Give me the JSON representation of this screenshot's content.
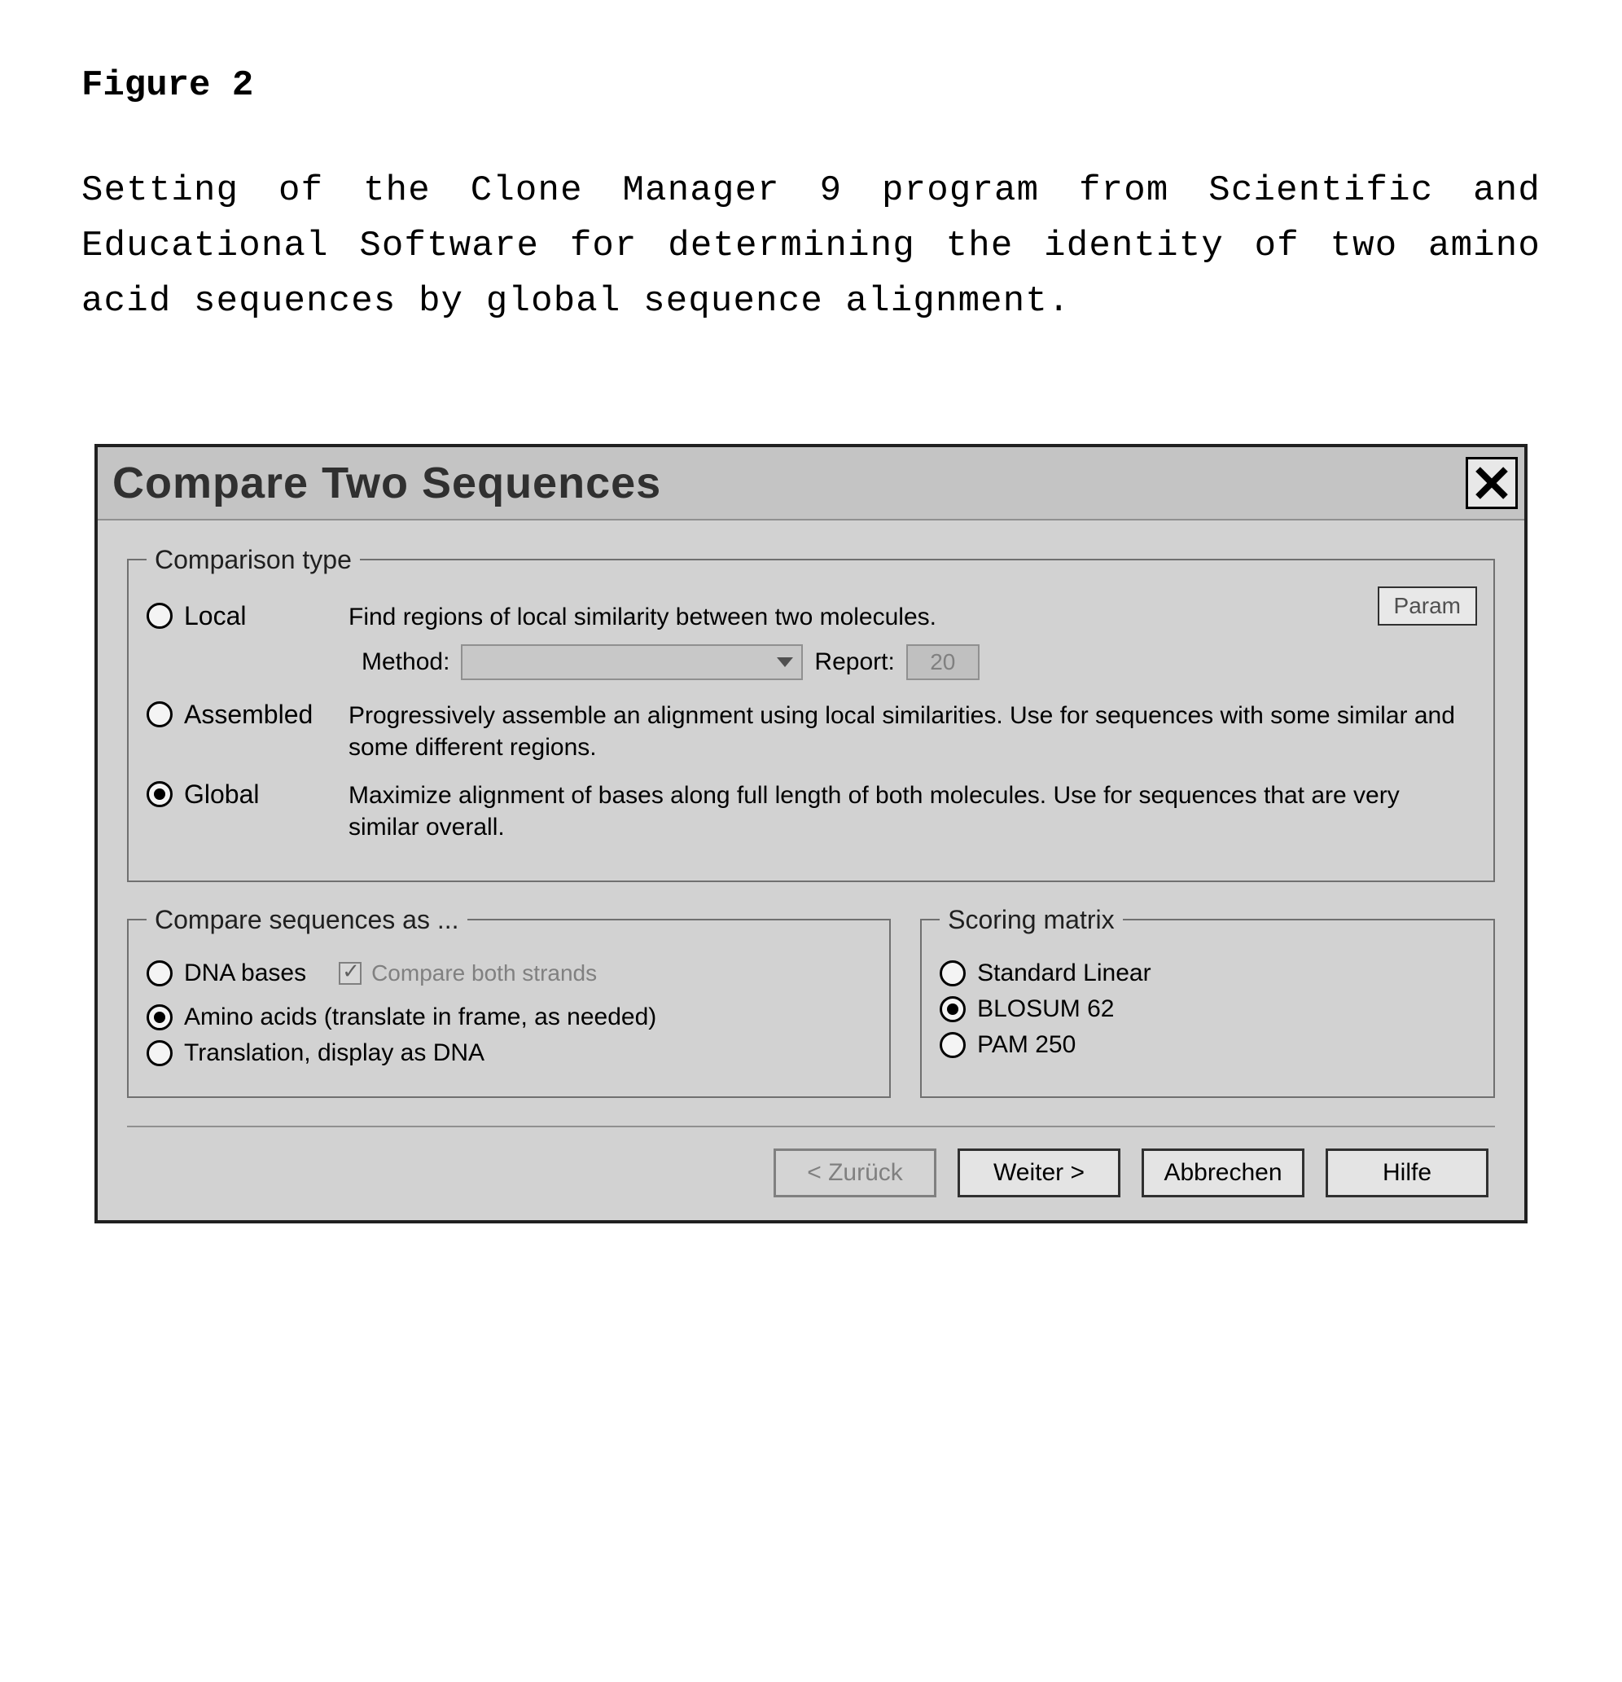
{
  "figure": {
    "title": "Figure 2",
    "caption": "Setting of the Clone Manager 9 program from Scientific and Educational Software for determining the identity of two amino acid sequences by global sequence alignment."
  },
  "dialog": {
    "title": "Compare Two Sequences",
    "param_button": "Param",
    "comparison_type": {
      "legend": "Comparison type",
      "local": {
        "label": "Local",
        "desc": "Find regions of local similarity between two molecules.",
        "selected": false
      },
      "method_label": "Method:",
      "method_value": "",
      "report_label": "Report:",
      "report_value": "20",
      "assembled": {
        "label": "Assembled",
        "desc": "Progressively assemble an alignment using local similarities. Use for sequences with some similar and some different regions.",
        "selected": false
      },
      "global": {
        "label": "Global",
        "desc": "Maximize alignment of bases along full length of both molecules. Use for sequences that are very similar overall.",
        "selected": true
      }
    },
    "compare_as": {
      "legend": "Compare sequences as ...",
      "dna": {
        "label": "DNA bases",
        "selected": false
      },
      "compare_both_strands": {
        "label": "Compare both strands",
        "checked": true
      },
      "amino": {
        "label": "Amino acids (translate in frame, as needed)",
        "selected": true
      },
      "translation": {
        "label": "Translation, display as DNA",
        "selected": false
      }
    },
    "scoring": {
      "legend": "Scoring matrix",
      "std": {
        "label": "Standard Linear",
        "selected": false
      },
      "blosum": {
        "label": "BLOSUM 62",
        "selected": true
      },
      "pam": {
        "label": "PAM 250",
        "selected": false
      }
    },
    "buttons": {
      "back": "< Zurück",
      "next": "Weiter >",
      "cancel": "Abbrechen",
      "help": "Hilfe"
    }
  }
}
